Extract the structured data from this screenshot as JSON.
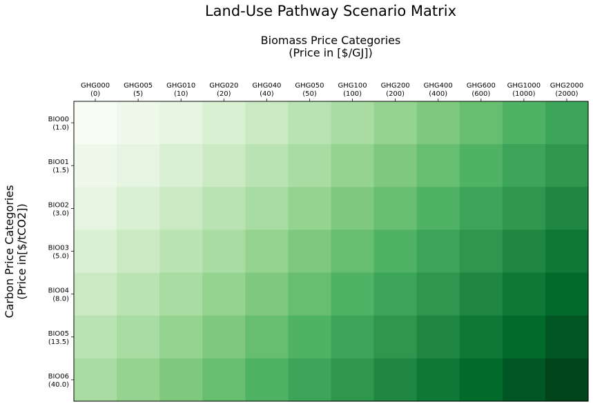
{
  "chart_data": {
    "type": "heatmap",
    "title": "Land-Use Pathway Scenario Matrix",
    "xlabel": [
      "Biomass Price Categories",
      "(Price in [$/GJ])"
    ],
    "ylabel": [
      "Carbon Price Categories",
      "(Price in[$/tCO2])"
    ],
    "x_ticks": [
      {
        "name": "GHG000",
        "value": "(0)"
      },
      {
        "name": "GHG005",
        "value": "(5)"
      },
      {
        "name": "GHG010",
        "value": "(10)"
      },
      {
        "name": "GHG020",
        "value": "(20)"
      },
      {
        "name": "GHG040",
        "value": "(40)"
      },
      {
        "name": "GHG050",
        "value": "(50)"
      },
      {
        "name": "GHG100",
        "value": "(100)"
      },
      {
        "name": "GHG200",
        "value": "(200)"
      },
      {
        "name": "GHG400",
        "value": "(400)"
      },
      {
        "name": "GHG600",
        "value": "(600)"
      },
      {
        "name": "GHG1000",
        "value": "(1000)"
      },
      {
        "name": "GHG2000",
        "value": "(2000)"
      }
    ],
    "y_ticks": [
      {
        "name": "BIO00",
        "value": "(1.0)"
      },
      {
        "name": "BIO01",
        "value": "(1.5)"
      },
      {
        "name": "BIO02",
        "value": "(3.0)"
      },
      {
        "name": "BIO03",
        "value": "(5.0)"
      },
      {
        "name": "BIO04",
        "value": "(8.0)"
      },
      {
        "name": "BIO05",
        "value": "(13.5)"
      },
      {
        "name": "BIO06",
        "value": "(40.0)"
      }
    ],
    "values": [
      [
        0,
        1,
        2,
        3,
        4,
        5,
        6,
        7,
        8,
        9,
        10,
        11
      ],
      [
        1,
        2,
        3,
        4,
        5,
        6,
        7,
        8,
        9,
        10,
        11,
        12
      ],
      [
        2,
        3,
        4,
        5,
        6,
        7,
        8,
        9,
        10,
        11,
        12,
        13
      ],
      [
        3,
        4,
        5,
        6,
        7,
        8,
        9,
        10,
        11,
        12,
        13,
        14
      ],
      [
        4,
        5,
        6,
        7,
        8,
        9,
        10,
        11,
        12,
        13,
        14,
        15
      ],
      [
        5,
        6,
        7,
        8,
        9,
        10,
        11,
        12,
        13,
        14,
        15,
        16
      ],
      [
        6,
        7,
        8,
        9,
        10,
        11,
        12,
        13,
        14,
        15,
        16,
        17
      ]
    ],
    "colormap": [
      "#f7fcf5",
      "#e5f5e0",
      "#c7e9c0",
      "#a1d99b",
      "#74c476",
      "#41ab5d",
      "#238b45",
      "#006d2c",
      "#00441b"
    ],
    "grid": false,
    "legend": "none"
  }
}
